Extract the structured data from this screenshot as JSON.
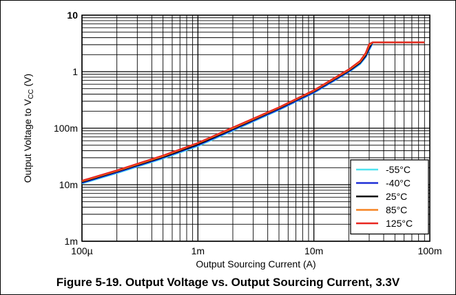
{
  "caption": "Figure 5-19. Output Voltage vs. Output Sourcing Current, 3.3V",
  "chart_data": {
    "type": "line",
    "xlabel": "Output Sourcing Current (A)",
    "ylabel_main": "Output Voltage to V",
    "ylabel_sub": "CC",
    "ylabel_unit": " (V)",
    "xscale": "log",
    "yscale": "log",
    "xlim": [
      0.0001,
      0.1
    ],
    "ylim": [
      0.001,
      10
    ],
    "xticks": [
      {
        "value": 0.0001,
        "label": "100µ"
      },
      {
        "value": 0.001,
        "label": "1m"
      },
      {
        "value": 0.01,
        "label": "10m"
      },
      {
        "value": 0.1,
        "label": "100m"
      }
    ],
    "yticks": [
      {
        "value": 0.001,
        "label": "1m"
      },
      {
        "value": 0.01,
        "label": "10m"
      },
      {
        "value": 0.1,
        "label": "100m"
      },
      {
        "value": 1,
        "label": "1"
      },
      {
        "value": 10,
        "label": "10"
      }
    ],
    "grid": true,
    "legend_position": "bottom-right",
    "series": [
      {
        "name": "-55°C",
        "color": "#4fe3f0",
        "x": [
          0.0001,
          0.0002,
          0.0005,
          0.001,
          0.002,
          0.005,
          0.01,
          0.02,
          0.025,
          0.028,
          0.03,
          0.032
        ],
        "y": [
          0.0105,
          0.016,
          0.029,
          0.048,
          0.09,
          0.21,
          0.42,
          0.98,
          1.35,
          1.8,
          2.4,
          3.1
        ]
      },
      {
        "name": "-40°C",
        "color": "#1f2fd6",
        "x": [
          0.0001,
          0.0002,
          0.0005,
          0.001,
          0.002,
          0.005,
          0.01,
          0.02,
          0.025,
          0.028,
          0.03,
          0.032
        ],
        "y": [
          0.0108,
          0.0165,
          0.03,
          0.05,
          0.093,
          0.215,
          0.43,
          1.0,
          1.4,
          1.85,
          2.5,
          3.2
        ]
      },
      {
        "name": "25°C",
        "color": "#000000",
        "x": [
          0.0001,
          0.0002,
          0.0005,
          0.001,
          0.002,
          0.005,
          0.01,
          0.02,
          0.025,
          0.028,
          0.03,
          0.032,
          0.09
        ],
        "y": [
          0.0112,
          0.0172,
          0.031,
          0.052,
          0.097,
          0.225,
          0.45,
          1.04,
          1.45,
          1.95,
          2.7,
          3.3,
          3.3
        ]
      },
      {
        "name": "85°C",
        "color": "#f58220",
        "x": [
          0.0001,
          0.0002,
          0.0005,
          0.001,
          0.002,
          0.005,
          0.01,
          0.02,
          0.025,
          0.028,
          0.03,
          0.032,
          0.09
        ],
        "y": [
          0.0115,
          0.0176,
          0.032,
          0.054,
          0.1,
          0.23,
          0.46,
          1.07,
          1.5,
          2.05,
          2.9,
          3.3,
          3.3
        ]
      },
      {
        "name": "125°C",
        "color": "#e8261f",
        "x": [
          0.0001,
          0.0002,
          0.0005,
          0.001,
          0.002,
          0.005,
          0.01,
          0.02,
          0.025,
          0.028,
          0.03,
          0.032,
          0.09
        ],
        "y": [
          0.0118,
          0.018,
          0.033,
          0.055,
          0.103,
          0.235,
          0.47,
          1.1,
          1.55,
          2.15,
          3.1,
          3.3,
          3.3
        ]
      }
    ]
  }
}
